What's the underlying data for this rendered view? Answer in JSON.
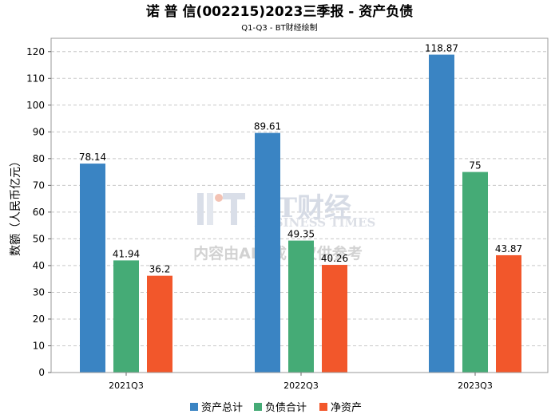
{
  "chart_data": {
    "type": "bar",
    "title": "诺 普 信(002215)2023三季报 - 资产负债",
    "subtitle": "Q1-Q3 - BT财经绘制",
    "xlabel": "",
    "ylabel": "数额（人民币亿元）",
    "categories": [
      "2021Q3",
      "2022Q3",
      "2023Q3"
    ],
    "ylim": [
      0,
      125
    ],
    "yticks": [
      0,
      10,
      20,
      30,
      40,
      50,
      60,
      70,
      80,
      90,
      100,
      110,
      120
    ],
    "grid": true,
    "legend_position": "bottom",
    "series": [
      {
        "name": "资产总计",
        "color": "#3a84c3",
        "values": [
          78.14,
          89.61,
          118.87
        ],
        "labels": [
          "78.14",
          "89.61",
          "118.87"
        ]
      },
      {
        "name": "负债合计",
        "color": "#45ab76",
        "values": [
          41.94,
          49.35,
          75
        ],
        "labels": [
          "41.94",
          "49.35",
          "75"
        ]
      },
      {
        "name": "净资产",
        "color": "#f2572b",
        "values": [
          36.2,
          40.26,
          43.87
        ],
        "labels": [
          "36.2",
          "40.26",
          "43.87"
        ]
      }
    ]
  },
  "watermark": {
    "brand": "BT财经",
    "brand_en": "BUSINESS TIMES",
    "note": "内容由AI生成，仅供参考"
  }
}
